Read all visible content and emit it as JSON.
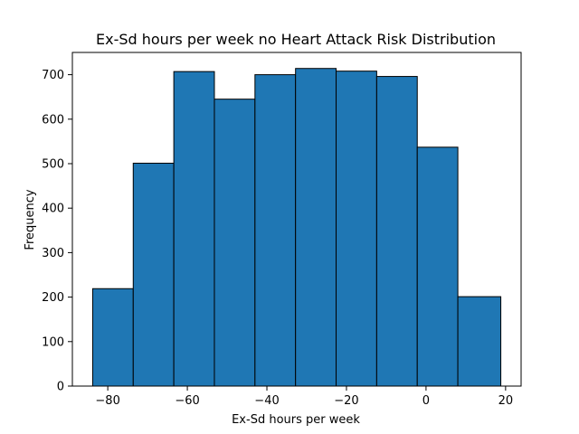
{
  "chart_data": {
    "type": "bar",
    "title": "Ex-Sd hours per week no Heart Attack Risk Distribution",
    "xlabel": "Ex-Sd hours per week",
    "ylabel": "Frequency",
    "bin_edges": [
      -83.8,
      -73.6,
      -63.4,
      -53.2,
      -43.0,
      -32.8,
      -22.6,
      -12.4,
      -2.2,
      8.0,
      18.8
    ],
    "values": [
      219,
      501,
      707,
      645,
      700,
      714,
      708,
      696,
      537,
      201
    ],
    "xlim": [
      -88.9,
      23.9
    ],
    "ylim": [
      0,
      750
    ],
    "xticks": [
      -80,
      -60,
      -40,
      -20,
      0,
      20
    ],
    "yticks": [
      0,
      100,
      200,
      300,
      400,
      500,
      600,
      700
    ],
    "grid": false,
    "legend": "none",
    "bar_color": "#1f77b4",
    "edge_color": "#000000"
  }
}
